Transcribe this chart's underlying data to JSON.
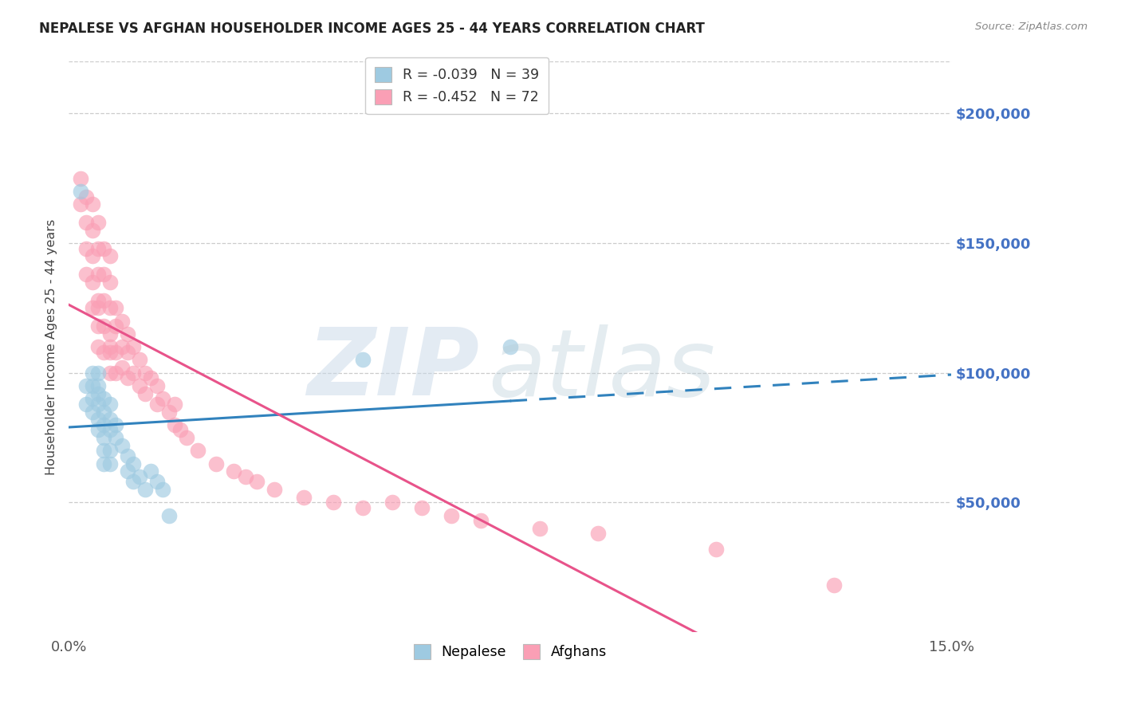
{
  "title": "NEPALESE VS AFGHAN HOUSEHOLDER INCOME AGES 25 - 44 YEARS CORRELATION CHART",
  "source": "Source: ZipAtlas.com",
  "ylabel": "Householder Income Ages 25 - 44 years",
  "ytick_values": [
    50000,
    100000,
    150000,
    200000
  ],
  "ytick_labels": [
    "$50,000",
    "$100,000",
    "$150,000",
    "$200,000"
  ],
  "xlim": [
    0.0,
    0.15
  ],
  "ylim": [
    0,
    220000
  ],
  "legend_blue_label": "R = -0.039   N = 39",
  "legend_pink_label": "R = -0.452   N = 72",
  "blue_scatter_color": "#9ecae1",
  "pink_scatter_color": "#fa9fb5",
  "trendline_blue_color": "#3182bd",
  "trendline_pink_color": "#e8538a",
  "nepalese_x": [
    0.002,
    0.003,
    0.003,
    0.004,
    0.004,
    0.004,
    0.004,
    0.005,
    0.005,
    0.005,
    0.005,
    0.005,
    0.005,
    0.006,
    0.006,
    0.006,
    0.006,
    0.006,
    0.006,
    0.007,
    0.007,
    0.007,
    0.007,
    0.007,
    0.008,
    0.008,
    0.009,
    0.01,
    0.01,
    0.011,
    0.011,
    0.012,
    0.013,
    0.014,
    0.015,
    0.016,
    0.017,
    0.05,
    0.075
  ],
  "nepalese_y": [
    170000,
    95000,
    88000,
    100000,
    95000,
    90000,
    85000,
    100000,
    92000,
    88000,
    82000,
    78000,
    95000,
    90000,
    85000,
    80000,
    75000,
    70000,
    65000,
    88000,
    82000,
    78000,
    70000,
    65000,
    80000,
    75000,
    72000,
    68000,
    62000,
    65000,
    58000,
    60000,
    55000,
    62000,
    58000,
    55000,
    45000,
    105000,
    110000
  ],
  "afghan_x": [
    0.002,
    0.002,
    0.003,
    0.003,
    0.003,
    0.003,
    0.004,
    0.004,
    0.004,
    0.004,
    0.004,
    0.005,
    0.005,
    0.005,
    0.005,
    0.005,
    0.005,
    0.005,
    0.006,
    0.006,
    0.006,
    0.006,
    0.006,
    0.007,
    0.007,
    0.007,
    0.007,
    0.007,
    0.007,
    0.007,
    0.008,
    0.008,
    0.008,
    0.008,
    0.009,
    0.009,
    0.009,
    0.01,
    0.01,
    0.01,
    0.011,
    0.011,
    0.012,
    0.012,
    0.013,
    0.013,
    0.014,
    0.015,
    0.015,
    0.016,
    0.017,
    0.018,
    0.018,
    0.019,
    0.02,
    0.022,
    0.025,
    0.028,
    0.03,
    0.032,
    0.035,
    0.04,
    0.045,
    0.05,
    0.055,
    0.06,
    0.065,
    0.07,
    0.08,
    0.09,
    0.11,
    0.13
  ],
  "afghan_y": [
    175000,
    165000,
    168000,
    158000,
    148000,
    138000,
    165000,
    155000,
    145000,
    135000,
    125000,
    158000,
    148000,
    138000,
    128000,
    118000,
    110000,
    125000,
    148000,
    138000,
    128000,
    118000,
    108000,
    145000,
    135000,
    125000,
    115000,
    108000,
    100000,
    110000,
    125000,
    118000,
    108000,
    100000,
    120000,
    110000,
    102000,
    115000,
    108000,
    98000,
    110000,
    100000,
    105000,
    95000,
    100000,
    92000,
    98000,
    95000,
    88000,
    90000,
    85000,
    88000,
    80000,
    78000,
    75000,
    70000,
    65000,
    62000,
    60000,
    58000,
    55000,
    52000,
    50000,
    48000,
    50000,
    48000,
    45000,
    43000,
    40000,
    38000,
    32000,
    18000
  ]
}
